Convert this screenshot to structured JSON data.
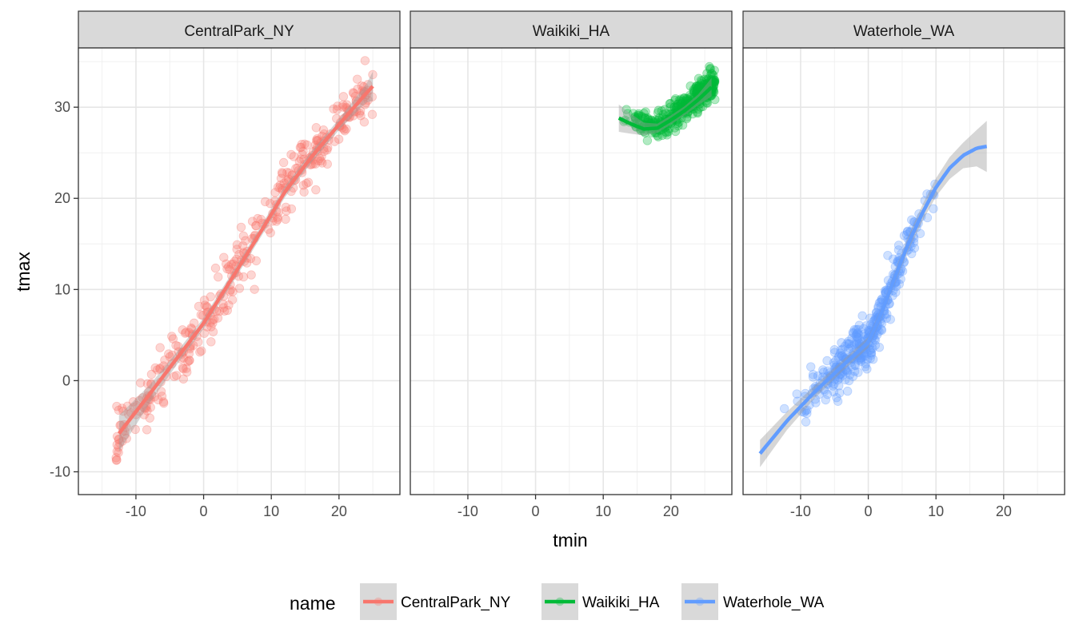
{
  "chart_data": {
    "type": "scatter",
    "facet_by": "name",
    "facets": [
      "CentralPark_NY",
      "Waikiki_HA",
      "Waterhole_WA"
    ],
    "xlabel": "tmin",
    "ylabel": "tmax",
    "xlim": [
      -18.5,
      29
    ],
    "ylim": [
      -12.5,
      36.5
    ],
    "x_ticks": [
      -10,
      0,
      10,
      20
    ],
    "x_tick_labels": [
      "-10",
      "0",
      "10",
      "20"
    ],
    "y_ticks": [
      -10,
      0,
      10,
      20,
      30
    ],
    "y_tick_labels": [
      "-10",
      "0",
      "10",
      "20",
      "30"
    ],
    "grid": true,
    "legend": {
      "title": "name",
      "position": "bottom"
    },
    "colors": {
      "CentralPark_NY": "#F8766D",
      "Waikiki_HA": "#00BA38",
      "Waterhole_WA": "#619CFF"
    },
    "point_alpha": 0.3,
    "series": [
      {
        "name": "CentralPark_NY",
        "tmin_range": [
          -13,
          25
        ],
        "smooth": {
          "x": [
            -12.5,
            -8,
            -4,
            0,
            4,
            8,
            12,
            16,
            20,
            24,
            25
          ],
          "y": [
            -5.8,
            -1.5,
            2.4,
            6.3,
            11.0,
            15.8,
            20.7,
            24.6,
            28.1,
            31.5,
            32.3
          ]
        },
        "band_halfwidth": [
          2.0,
          1.0,
          0.7,
          0.6,
          0.6,
          0.6,
          0.6,
          0.6,
          0.6,
          1.0,
          1.6
        ]
      },
      {
        "name": "Waikiki_HA",
        "tmin_range": [
          12,
          26
        ],
        "smooth": {
          "x": [
            12.3,
            14,
            16,
            18,
            20,
            22,
            24,
            26
          ],
          "y": [
            28.8,
            28.2,
            27.6,
            27.7,
            28.6,
            29.6,
            30.8,
            32.2
          ]
        },
        "band_halfwidth": [
          1.5,
          1.1,
          0.7,
          0.5,
          0.5,
          0.5,
          0.6,
          1.0
        ]
      },
      {
        "name": "Waterhole_WA",
        "tmin_range": [
          -16,
          17.5
        ],
        "smooth": {
          "x": [
            -16,
            -12,
            -8,
            -4,
            0,
            2,
            4,
            6,
            8,
            10,
            12,
            14,
            16,
            17.5
          ],
          "y": [
            -8.0,
            -4.4,
            -1.3,
            1.5,
            4.2,
            7.5,
            11.5,
            15.2,
            18.4,
            21.2,
            23.3,
            24.7,
            25.5,
            25.7
          ]
        },
        "band_halfwidth": [
          1.5,
          1.0,
          0.7,
          0.6,
          0.6,
          0.6,
          0.7,
          0.8,
          0.9,
          1.0,
          1.2,
          1.4,
          2.0,
          2.8
        ]
      }
    ]
  }
}
